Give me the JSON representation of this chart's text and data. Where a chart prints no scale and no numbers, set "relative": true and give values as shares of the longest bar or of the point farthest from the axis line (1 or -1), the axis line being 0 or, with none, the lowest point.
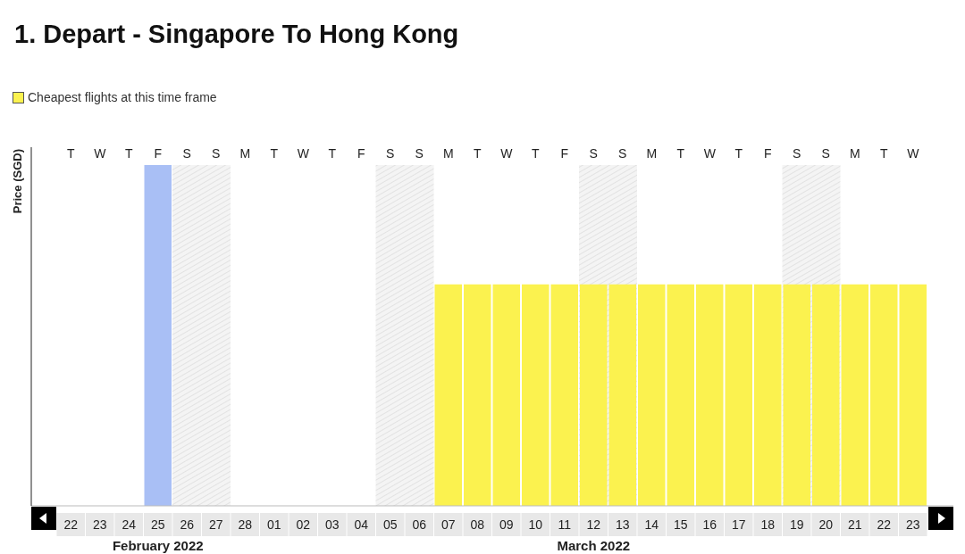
{
  "chart_data": {
    "type": "bar",
    "title": "1. Depart - Singapore To Hong Kong",
    "ylabel": "Price (SGD)",
    "relative": true,
    "categories": [
      "22",
      "23",
      "24",
      "25",
      "26",
      "27",
      "28",
      "01",
      "02",
      "03",
      "04",
      "05",
      "06",
      "07",
      "08",
      "09",
      "10",
      "11",
      "12",
      "13",
      "14",
      "15",
      "16",
      "17",
      "18",
      "19",
      "20",
      "21",
      "22",
      "23"
    ],
    "series": [
      {
        "name": "Cheapest flights at this time frame",
        "color": "#fbf24f",
        "values": [
          null,
          null,
          null,
          null,
          null,
          null,
          null,
          null,
          null,
          null,
          null,
          null,
          null,
          0.65,
          0.65,
          0.65,
          0.65,
          0.65,
          0.65,
          0.65,
          0.65,
          0.65,
          0.65,
          0.65,
          0.65,
          0.65,
          0.65,
          0.65,
          0.65,
          0.65
        ]
      },
      {
        "color": "#a9bff5",
        "values": [
          null,
          null,
          null,
          1,
          null,
          null,
          null,
          null,
          null,
          null,
          null,
          null,
          null,
          null,
          null,
          null,
          null,
          null,
          null,
          null,
          null,
          null,
          null,
          null,
          null,
          null,
          null,
          null,
          null,
          null
        ]
      }
    ],
    "bands": [
      {
        "axis": "x",
        "from": "26",
        "to": "27",
        "color": "#d0d0d0"
      },
      {
        "axis": "x",
        "from": "05",
        "to": "06",
        "color": "#d0d0d0"
      },
      {
        "axis": "x",
        "from": "12",
        "to": "13",
        "color": "#d0d0d0"
      },
      {
        "axis": "x",
        "from": "19",
        "to": "20",
        "color": "#d0d0d0"
      }
    ],
    "annotations": [
      "T",
      "W",
      "T",
      "F",
      "S",
      "S",
      "M",
      "T",
      "W",
      "T",
      "F",
      "S",
      "S",
      "M",
      "T",
      "W",
      "T",
      "F",
      "S",
      "S",
      "M",
      "T",
      "W",
      "T",
      "F",
      "S",
      "S",
      "M",
      "T",
      "W",
      "February 2022",
      "March 2022"
    ],
    "legend": "top left"
  }
}
